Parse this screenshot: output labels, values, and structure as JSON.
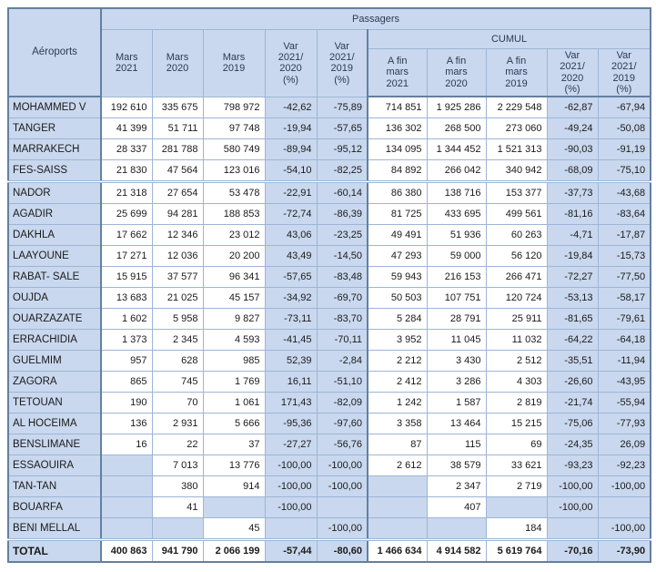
{
  "title": "Passagers",
  "cumul_label": "CUMUL",
  "airports_label": "Aéroports",
  "columns": [
    "Mars\n2021",
    "Mars\n2020",
    "Mars\n2019",
    "Var\n2021/\n2020\n(%)",
    "Var\n2021/\n2019\n(%)",
    "A fin\nmars\n2021",
    "A fin\nmars\n2020",
    "A fin\nmars\n2019",
    "Var\n2021/\n2020\n(%)",
    "Var\n2021/\n2019\n(%)"
  ],
  "colors": {
    "cell_blue": "#c9d8ee",
    "border_light": "#9db5d6",
    "border_dark": "#64809f",
    "header_text": "#2b3a55",
    "data_text": "#1a1a1a",
    "name_text": "#1a1a1a"
  },
  "rows": [
    {
      "name": "MOHAMMED V",
      "values": [
        "192 610",
        "335 675",
        "798 972",
        "-42,62",
        "-75,89",
        "714 851",
        "1 925 286",
        "2 229 548",
        "-62,87",
        "-67,94"
      ]
    },
    {
      "name": "TANGER",
      "values": [
        "41 399",
        "51 711",
        "97 748",
        "-19,94",
        "-57,65",
        "136 302",
        "268 500",
        "273 060",
        "-49,24",
        "-50,08"
      ]
    },
    {
      "name": "MARRAKECH",
      "values": [
        "28 337",
        "281 788",
        "580 749",
        "-89,94",
        "-95,12",
        "134 095",
        "1 344 452",
        "1 521 313",
        "-90,03",
        "-91,19"
      ]
    },
    {
      "name": "FES-SAISS",
      "values": [
        "21 830",
        "47 564",
        "123 016",
        "-54,10",
        "-82,25",
        "84 892",
        "266 042",
        "340 942",
        "-68,09",
        "-75,10"
      ]
    },
    {
      "name": "NADOR",
      "values": [
        "21 318",
        "27 654",
        "53 478",
        "-22,91",
        "-60,14",
        "86 380",
        "138 716",
        "153 377",
        "-37,73",
        "-43,68"
      ]
    },
    {
      "name": "AGADIR",
      "values": [
        "25 699",
        "94 281",
        "188 853",
        "-72,74",
        "-86,39",
        "81 725",
        "433 695",
        "499 561",
        "-81,16",
        "-83,64"
      ]
    },
    {
      "name": "DAKHLA",
      "values": [
        "17 662",
        "12 346",
        "23 012",
        "43,06",
        "-23,25",
        "49 491",
        "51 936",
        "60 263",
        "-4,71",
        "-17,87"
      ]
    },
    {
      "name": "LAAYOUNE",
      "values": [
        "17 271",
        "12 036",
        "20 200",
        "43,49",
        "-14,50",
        "47 293",
        "59 000",
        "56 120",
        "-19,84",
        "-15,73"
      ]
    },
    {
      "name": "RABAT- SALE",
      "values": [
        "15 915",
        "37 577",
        "96 341",
        "-57,65",
        "-83,48",
        "59 943",
        "216 153",
        "266 471",
        "-72,27",
        "-77,50"
      ]
    },
    {
      "name": "OUJDA",
      "values": [
        "13 683",
        "21 025",
        "45 157",
        "-34,92",
        "-69,70",
        "50 503",
        "107 751",
        "120 724",
        "-53,13",
        "-58,17"
      ]
    },
    {
      "name": "OUARZAZATE",
      "values": [
        "1 602",
        "5 958",
        "9 827",
        "-73,11",
        "-83,70",
        "5 284",
        "28 791",
        "25 911",
        "-81,65",
        "-79,61"
      ]
    },
    {
      "name": "ERRACHIDIA",
      "values": [
        "1 373",
        "2 345",
        "4 593",
        "-41,45",
        "-70,11",
        "3 952",
        "11 045",
        "11 032",
        "-64,22",
        "-64,18"
      ]
    },
    {
      "name": "GUELMIM",
      "values": [
        "957",
        "628",
        "985",
        "52,39",
        "-2,84",
        "2 212",
        "3 430",
        "2 512",
        "-35,51",
        "-11,94"
      ]
    },
    {
      "name": "ZAGORA",
      "values": [
        "865",
        "745",
        "1 769",
        "16,11",
        "-51,10",
        "2 412",
        "3 286",
        "4 303",
        "-26,60",
        "-43,95"
      ]
    },
    {
      "name": "TETOUAN",
      "values": [
        "190",
        "70",
        "1 061",
        "171,43",
        "-82,09",
        "1 242",
        "1 587",
        "2 819",
        "-21,74",
        "-55,94"
      ]
    },
    {
      "name": "AL HOCEIMA",
      "values": [
        "136",
        "2 931",
        "5 666",
        "-95,36",
        "-97,60",
        "3 358",
        "13 464",
        "15 215",
        "-75,06",
        "-77,93"
      ]
    },
    {
      "name": "BENSLIMANE",
      "values": [
        "16",
        "22",
        "37",
        "-27,27",
        "-56,76",
        "87",
        "115",
        "69",
        "-24,35",
        "26,09"
      ]
    },
    {
      "name": "ESSAOUIRA",
      "values": [
        "",
        "7 013",
        "13 776",
        "-100,00",
        "-100,00",
        "2 612",
        "38 579",
        "33 621",
        "-93,23",
        "-92,23"
      ]
    },
    {
      "name": "TAN-TAN",
      "values": [
        "",
        "380",
        "914",
        "-100,00",
        "-100,00",
        "",
        "2 347",
        "2 719",
        "-100,00",
        "-100,00"
      ]
    },
    {
      "name": "BOUARFA",
      "values": [
        "",
        "41",
        "",
        "-100,00",
        "",
        "",
        "407",
        "",
        "-100,00",
        ""
      ]
    },
    {
      "name": "BENI MELLAL",
      "values": [
        "",
        "",
        "45",
        "",
        "-100,00",
        "",
        "",
        "184",
        "",
        "-100,00"
      ]
    }
  ],
  "total": {
    "name": "TOTAL",
    "values": [
      "400 863",
      "941 790",
      "2 066 199",
      "-57,44",
      "-80,60",
      "1 466 634",
      "4 914 582",
      "5 619 764",
      "-70,16",
      "-73,90"
    ]
  }
}
